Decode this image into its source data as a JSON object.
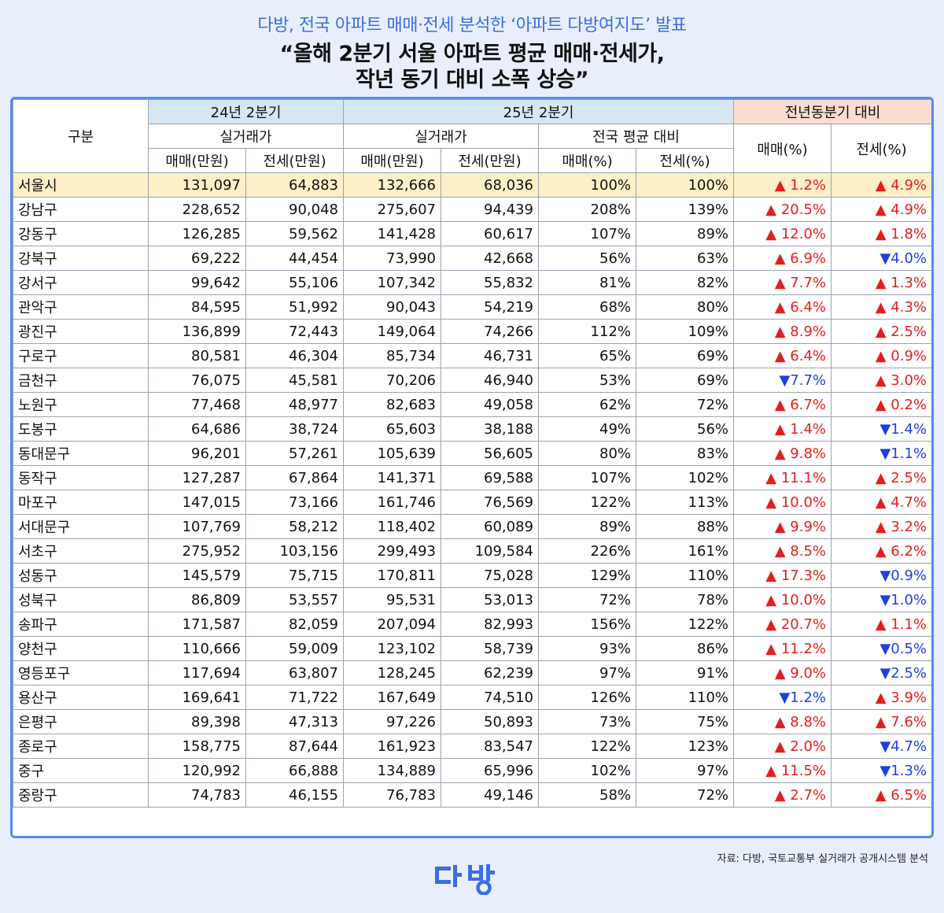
{
  "header": {
    "subtitle": "다방, 전국 아파트 매매·전세 분석한 ‘아파트 다방여지도’ 발표",
    "title_line1": "“올해 2분기 서울 아파트 평균 매매·전세가,",
    "title_line2": "작년 동기 대비 소폭 상승”"
  },
  "table": {
    "col_region": "구분",
    "group_prev": "24년 2분기",
    "group_cur": "25년 2분기",
    "group_yoy": "전년동분기 대비",
    "sub_prev_actual": "실거래가",
    "sub_cur_actual": "실거래가",
    "sub_cur_national": "전국 평균 대비",
    "col_sale_won": "매매(만원)",
    "col_jeonse_won": "전세(만원)",
    "col_sale_pct": "매매(%)",
    "col_jeonse_pct": "전세(%)",
    "rows": [
      {
        "region": "서울시",
        "p_sale": "131,097",
        "p_jeonse": "64,883",
        "c_sale": "132,666",
        "c_jeonse": "68,036",
        "n_sale": "100%",
        "n_jeonse": "100%",
        "y_sale": "▲ 1.2%",
        "y_sale_dir": "up",
        "y_jeonse": "▲ 4.9%",
        "y_jeonse_dir": "up"
      },
      {
        "region": "강남구",
        "p_sale": "228,652",
        "p_jeonse": "90,048",
        "c_sale": "275,607",
        "c_jeonse": "94,439",
        "n_sale": "208%",
        "n_jeonse": "139%",
        "y_sale": "▲ 20.5%",
        "y_sale_dir": "up",
        "y_jeonse": "▲ 4.9%",
        "y_jeonse_dir": "up"
      },
      {
        "region": "강동구",
        "p_sale": "126,285",
        "p_jeonse": "59,562",
        "c_sale": "141,428",
        "c_jeonse": "60,617",
        "n_sale": "107%",
        "n_jeonse": "89%",
        "y_sale": "▲ 12.0%",
        "y_sale_dir": "up",
        "y_jeonse": "▲ 1.8%",
        "y_jeonse_dir": "up"
      },
      {
        "region": "강북구",
        "p_sale": "69,222",
        "p_jeonse": "44,454",
        "c_sale": "73,990",
        "c_jeonse": "42,668",
        "n_sale": "56%",
        "n_jeonse": "63%",
        "y_sale": "▲ 6.9%",
        "y_sale_dir": "up",
        "y_jeonse": "▼4.0%",
        "y_jeonse_dir": "down"
      },
      {
        "region": "강서구",
        "p_sale": "99,642",
        "p_jeonse": "55,106",
        "c_sale": "107,342",
        "c_jeonse": "55,832",
        "n_sale": "81%",
        "n_jeonse": "82%",
        "y_sale": "▲ 7.7%",
        "y_sale_dir": "up",
        "y_jeonse": "▲ 1.3%",
        "y_jeonse_dir": "up"
      },
      {
        "region": "관악구",
        "p_sale": "84,595",
        "p_jeonse": "51,992",
        "c_sale": "90,043",
        "c_jeonse": "54,219",
        "n_sale": "68%",
        "n_jeonse": "80%",
        "y_sale": "▲ 6.4%",
        "y_sale_dir": "up",
        "y_jeonse": "▲ 4.3%",
        "y_jeonse_dir": "up"
      },
      {
        "region": "광진구",
        "p_sale": "136,899",
        "p_jeonse": "72,443",
        "c_sale": "149,064",
        "c_jeonse": "74,266",
        "n_sale": "112%",
        "n_jeonse": "109%",
        "y_sale": "▲ 8.9%",
        "y_sale_dir": "up",
        "y_jeonse": "▲ 2.5%",
        "y_jeonse_dir": "up"
      },
      {
        "region": "구로구",
        "p_sale": "80,581",
        "p_jeonse": "46,304",
        "c_sale": "85,734",
        "c_jeonse": "46,731",
        "n_sale": "65%",
        "n_jeonse": "69%",
        "y_sale": "▲ 6.4%",
        "y_sale_dir": "up",
        "y_jeonse": "▲ 0.9%",
        "y_jeonse_dir": "up"
      },
      {
        "region": "금천구",
        "p_sale": "76,075",
        "p_jeonse": "45,581",
        "c_sale": "70,206",
        "c_jeonse": "46,940",
        "n_sale": "53%",
        "n_jeonse": "69%",
        "y_sale": "▼7.7%",
        "y_sale_dir": "down",
        "y_jeonse": "▲ 3.0%",
        "y_jeonse_dir": "up"
      },
      {
        "region": "노원구",
        "p_sale": "77,468",
        "p_jeonse": "48,977",
        "c_sale": "82,683",
        "c_jeonse": "49,058",
        "n_sale": "62%",
        "n_jeonse": "72%",
        "y_sale": "▲ 6.7%",
        "y_sale_dir": "up",
        "y_jeonse": "▲ 0.2%",
        "y_jeonse_dir": "up"
      },
      {
        "region": "도봉구",
        "p_sale": "64,686",
        "p_jeonse": "38,724",
        "c_sale": "65,603",
        "c_jeonse": "38,188",
        "n_sale": "49%",
        "n_jeonse": "56%",
        "y_sale": "▲ 1.4%",
        "y_sale_dir": "up",
        "y_jeonse": "▼1.4%",
        "y_jeonse_dir": "down"
      },
      {
        "region": "동대문구",
        "p_sale": "96,201",
        "p_jeonse": "57,261",
        "c_sale": "105,639",
        "c_jeonse": "56,605",
        "n_sale": "80%",
        "n_jeonse": "83%",
        "y_sale": "▲ 9.8%",
        "y_sale_dir": "up",
        "y_jeonse": "▼1.1%",
        "y_jeonse_dir": "down"
      },
      {
        "region": "동작구",
        "p_sale": "127,287",
        "p_jeonse": "67,864",
        "c_sale": "141,371",
        "c_jeonse": "69,588",
        "n_sale": "107%",
        "n_jeonse": "102%",
        "y_sale": "▲ 11.1%",
        "y_sale_dir": "up",
        "y_jeonse": "▲ 2.5%",
        "y_jeonse_dir": "up"
      },
      {
        "region": "마포구",
        "p_sale": "147,015",
        "p_jeonse": "73,166",
        "c_sale": "161,746",
        "c_jeonse": "76,569",
        "n_sale": "122%",
        "n_jeonse": "113%",
        "y_sale": "▲ 10.0%",
        "y_sale_dir": "up",
        "y_jeonse": "▲ 4.7%",
        "y_jeonse_dir": "up"
      },
      {
        "region": "서대문구",
        "p_sale": "107,769",
        "p_jeonse": "58,212",
        "c_sale": "118,402",
        "c_jeonse": "60,089",
        "n_sale": "89%",
        "n_jeonse": "88%",
        "y_sale": "▲ 9.9%",
        "y_sale_dir": "up",
        "y_jeonse": "▲ 3.2%",
        "y_jeonse_dir": "up"
      },
      {
        "region": "서초구",
        "p_sale": "275,952",
        "p_jeonse": "103,156",
        "c_sale": "299,493",
        "c_jeonse": "109,584",
        "n_sale": "226%",
        "n_jeonse": "161%",
        "y_sale": "▲ 8.5%",
        "y_sale_dir": "up",
        "y_jeonse": "▲ 6.2%",
        "y_jeonse_dir": "up"
      },
      {
        "region": "성동구",
        "p_sale": "145,579",
        "p_jeonse": "75,715",
        "c_sale": "170,811",
        "c_jeonse": "75,028",
        "n_sale": "129%",
        "n_jeonse": "110%",
        "y_sale": "▲ 17.3%",
        "y_sale_dir": "up",
        "y_jeonse": "▼0.9%",
        "y_jeonse_dir": "down"
      },
      {
        "region": "성북구",
        "p_sale": "86,809",
        "p_jeonse": "53,557",
        "c_sale": "95,531",
        "c_jeonse": "53,013",
        "n_sale": "72%",
        "n_jeonse": "78%",
        "y_sale": "▲ 10.0%",
        "y_sale_dir": "up",
        "y_jeonse": "▼1.0%",
        "y_jeonse_dir": "down"
      },
      {
        "region": "송파구",
        "p_sale": "171,587",
        "p_jeonse": "82,059",
        "c_sale": "207,094",
        "c_jeonse": "82,993",
        "n_sale": "156%",
        "n_jeonse": "122%",
        "y_sale": "▲ 20.7%",
        "y_sale_dir": "up",
        "y_jeonse": "▲ 1.1%",
        "y_jeonse_dir": "up"
      },
      {
        "region": "양천구",
        "p_sale": "110,666",
        "p_jeonse": "59,009",
        "c_sale": "123,102",
        "c_jeonse": "58,739",
        "n_sale": "93%",
        "n_jeonse": "86%",
        "y_sale": "▲ 11.2%",
        "y_sale_dir": "up",
        "y_jeonse": "▼0.5%",
        "y_jeonse_dir": "down"
      },
      {
        "region": "영등포구",
        "p_sale": "117,694",
        "p_jeonse": "63,807",
        "c_sale": "128,245",
        "c_jeonse": "62,239",
        "n_sale": "97%",
        "n_jeonse": "91%",
        "y_sale": "▲ 9.0%",
        "y_sale_dir": "up",
        "y_jeonse": "▼2.5%",
        "y_jeonse_dir": "down"
      },
      {
        "region": "용산구",
        "p_sale": "169,641",
        "p_jeonse": "71,722",
        "c_sale": "167,649",
        "c_jeonse": "74,510",
        "n_sale": "126%",
        "n_jeonse": "110%",
        "y_sale": "▼1.2%",
        "y_sale_dir": "down",
        "y_jeonse": "▲ 3.9%",
        "y_jeonse_dir": "up"
      },
      {
        "region": "은평구",
        "p_sale": "89,398",
        "p_jeonse": "47,313",
        "c_sale": "97,226",
        "c_jeonse": "50,893",
        "n_sale": "73%",
        "n_jeonse": "75%",
        "y_sale": "▲ 8.8%",
        "y_sale_dir": "up",
        "y_jeonse": "▲ 7.6%",
        "y_jeonse_dir": "up"
      },
      {
        "region": "종로구",
        "p_sale": "158,775",
        "p_jeonse": "87,644",
        "c_sale": "161,923",
        "c_jeonse": "83,547",
        "n_sale": "122%",
        "n_jeonse": "123%",
        "y_sale": "▲ 2.0%",
        "y_sale_dir": "up",
        "y_jeonse": "▼4.7%",
        "y_jeonse_dir": "down"
      },
      {
        "region": "중구",
        "p_sale": "120,992",
        "p_jeonse": "66,888",
        "c_sale": "134,889",
        "c_jeonse": "65,996",
        "n_sale": "102%",
        "n_jeonse": "97%",
        "y_sale": "▲ 11.5%",
        "y_sale_dir": "up",
        "y_jeonse": "▼1.3%",
        "y_jeonse_dir": "down"
      },
      {
        "region": "중랑구",
        "p_sale": "74,783",
        "p_jeonse": "46,155",
        "c_sale": "76,783",
        "c_jeonse": "49,146",
        "n_sale": "58%",
        "n_jeonse": "72%",
        "y_sale": "▲ 2.7%",
        "y_sale_dir": "up",
        "y_jeonse": "▲ 6.5%",
        "y_jeonse_dir": "up"
      }
    ]
  },
  "footer": {
    "source": "자료: 다방, 국토교통부 실거래가 공개시스템 분석",
    "logo_icon": "dabang-logo-icon",
    "logo_color": "#3b6fe0"
  }
}
